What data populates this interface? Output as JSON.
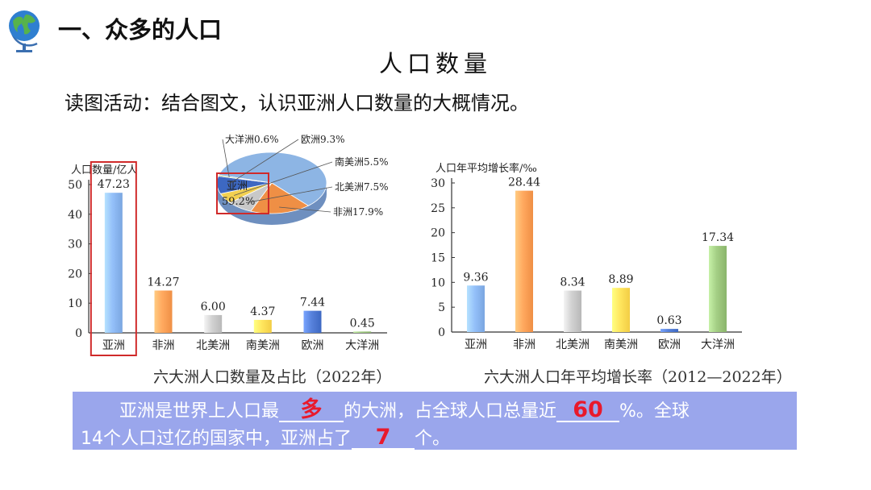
{
  "header": {
    "section_title": "一、众多的人口",
    "main_title": "人口数量",
    "instruction": "读图活动：结合图文，认识亚洲人口数量的大概情况。"
  },
  "chart_data": [
    {
      "type": "bar",
      "title": "六大洲人口数量及占比（2022年）",
      "ylabel": "人口数量/亿人",
      "ylim": [
        0,
        50
      ],
      "yticks": [
        0,
        10,
        20,
        30,
        40,
        50
      ],
      "categories": [
        "亚洲",
        "非洲",
        "北美洲",
        "南美洲",
        "欧洲",
        "大洋洲"
      ],
      "values": [
        47.23,
        14.27,
        6.0,
        4.37,
        7.44,
        0.45
      ],
      "value_labels": [
        "47.23",
        "14.27",
        "6.00",
        "4.37",
        "7.44",
        "0.45"
      ],
      "colors": [
        "#7aa6e0",
        "#ef8f45",
        "#b8b8b8",
        "#f2cd45",
        "#3d68c2",
        "#8ab56b"
      ],
      "highlight": "亚洲"
    },
    {
      "type": "pie",
      "labels": [
        "亚洲",
        "非洲",
        "北美洲",
        "南美洲",
        "欧洲",
        "大洋洲"
      ],
      "values": [
        59.2,
        17.9,
        7.5,
        5.5,
        9.3,
        0.6
      ],
      "slice_labels": [
        "亚洲\n59.2%",
        "非洲17.9%",
        "北美洲7.5%",
        "南美洲5.5%",
        "欧洲9.3%",
        "大洋洲0.6%"
      ],
      "colors": [
        "#8db5e4",
        "#ef8f45",
        "#c8c8c8",
        "#f2d050",
        "#3d68c2",
        "#8ab56b"
      ],
      "highlight": "亚洲"
    },
    {
      "type": "bar",
      "title": "六大洲人口年平均增长率（2012—2022年）",
      "ylabel": "人口年平均增长率/‰",
      "ylim": [
        0,
        30
      ],
      "yticks": [
        0,
        5,
        10,
        15,
        20,
        25,
        30
      ],
      "categories": [
        "亚洲",
        "非洲",
        "北美洲",
        "南美洲",
        "欧洲",
        "大洋洲"
      ],
      "values": [
        9.36,
        28.44,
        8.34,
        8.89,
        0.63,
        17.34
      ],
      "value_labels": [
        "9.36",
        "28.44",
        "8.34",
        "8.89",
        "0.63",
        "17.34"
      ],
      "colors": [
        "#7aa6e0",
        "#ef8f45",
        "#b8b8b8",
        "#f2cd45",
        "#3d68c2",
        "#8ab56b"
      ]
    }
  ],
  "question": {
    "line1_a": "亚洲是世界上人口最",
    "blank1": "多",
    "line1_b": "的大洲，占全球人口总量近",
    "blank2": "60",
    "line1_c": "%。全球",
    "line2_a": "14个人口过亿的国家中，亚洲占了",
    "blank3": "7",
    "line2_b": "个。"
  }
}
